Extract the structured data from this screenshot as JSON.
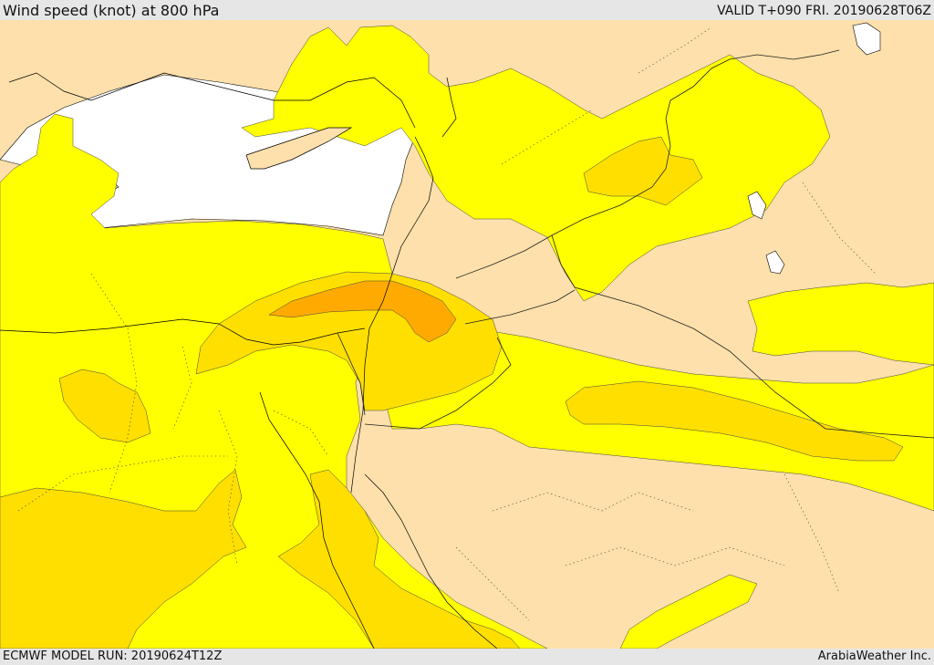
{
  "header": {
    "title": "Wind speed (knot) at 800 hPa",
    "valid_time": "VALID T+090 FRI. 20190628T06Z"
  },
  "footer": {
    "model_run": "ECMWF MODEL RUN: 20190624T12Z",
    "credit": "ArabiaWeather Inc."
  },
  "colors": {
    "bg_sea": "#ffffff",
    "band_light": "#fde0ab",
    "band_yellow": "#ffff00",
    "band_gold": "#ffdf00",
    "band_orange": "#ffaa00",
    "coast": "#000000",
    "border": "#222222",
    "bar": "#e6e6e6"
  }
}
